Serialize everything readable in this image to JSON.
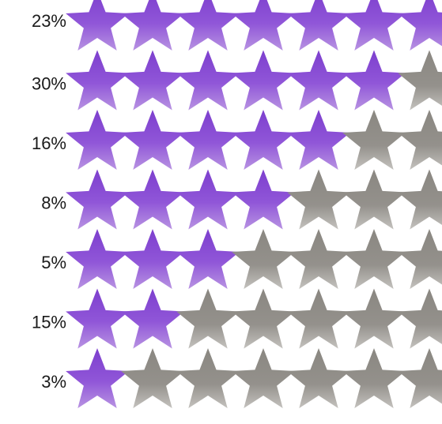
{
  "chart_data": {
    "type": "pictograph",
    "title": "",
    "xlabel": "",
    "ylabel": "",
    "categories": [
      "23%",
      "30%",
      "16%",
      "8%",
      "5%",
      "15%",
      "3%"
    ],
    "values": [
      23,
      30,
      16,
      8,
      5,
      15,
      3
    ],
    "stars_filled": [
      7,
      6,
      5,
      4,
      3,
      2,
      1
    ],
    "stars_visible_per_row": 7,
    "icon": "star-icon",
    "colors": {
      "filled": "#8d4fd6",
      "filled_light": "#a37ad8",
      "empty": "#908d88",
      "empty_light": "#b0aea9",
      "label": "#1a1a1a"
    }
  }
}
